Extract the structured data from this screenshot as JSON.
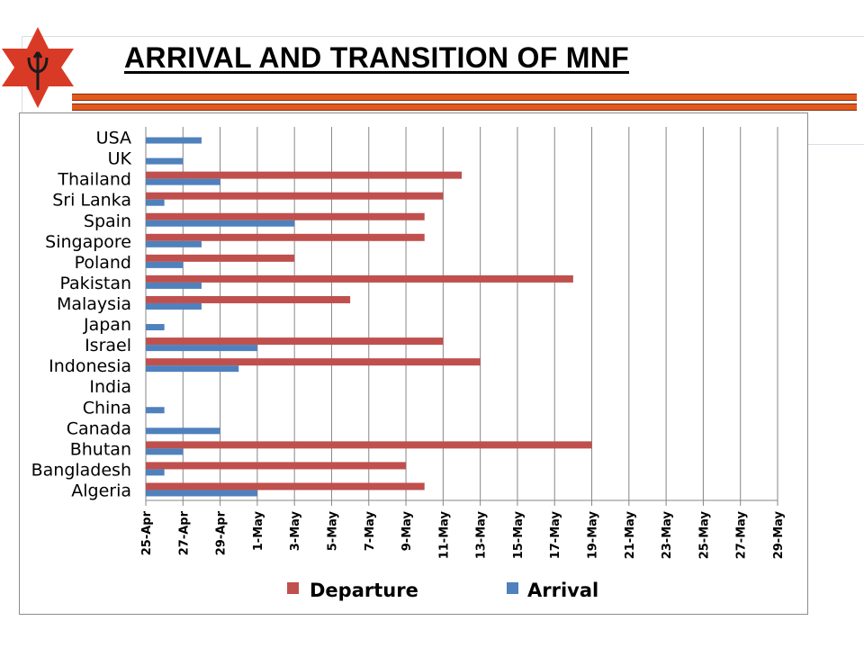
{
  "header": {
    "title": "ARRIVAL AND TRANSITION OF MNF"
  },
  "colors": {
    "departure": "#c0504d",
    "arrival": "#4f81bd",
    "logo_red": "#d93a26",
    "rule_orange": "#e05a1e"
  },
  "icons": {
    "logo": "star-trident-emblem-icon"
  },
  "chart_data": {
    "type": "bar",
    "orientation": "horizontal",
    "title": "",
    "xlabel": "",
    "ylabel": "",
    "categories": [
      "USA",
      "UK",
      "Thailand",
      "Sri Lanka",
      "Spain",
      "Singapore",
      "Poland",
      "Pakistan",
      "Malaysia",
      "Japan",
      "Israel",
      "Indonesia",
      "India",
      "China",
      "Canada",
      "Bhutan",
      "Bangladesh",
      "Algeria"
    ],
    "x_ticks": [
      "25-Apr",
      "27-Apr",
      "29-Apr",
      "1-May",
      "3-May",
      "5-May",
      "7-May",
      "9-May",
      "11-May",
      "13-May",
      "15-May",
      "17-May",
      "19-May",
      "21-May",
      "23-May",
      "25-May",
      "27-May",
      "29-May"
    ],
    "xlim": [
      "25-Apr",
      "29-May"
    ],
    "grid": "vertical",
    "legend_position": "bottom",
    "series": [
      {
        "name": "Departure",
        "values": [
          null,
          null,
          "12-May",
          "11-May",
          "10-May",
          "10-May",
          "3-May",
          "18-May",
          "6-May",
          null,
          "11-May",
          "13-May",
          null,
          null,
          null,
          "19-May",
          "9-May",
          "10-May"
        ]
      },
      {
        "name": "Arrival",
        "values": [
          "28-Apr",
          "27-Apr",
          "29-Apr",
          "26-Apr",
          "3-May",
          "28-Apr",
          "27-Apr",
          "28-Apr",
          "28-Apr",
          "26-Apr",
          "1-May",
          "30-Apr",
          null,
          "26-Apr",
          "29-Apr",
          "27-Apr",
          "26-Apr",
          "1-May"
        ]
      }
    ]
  }
}
